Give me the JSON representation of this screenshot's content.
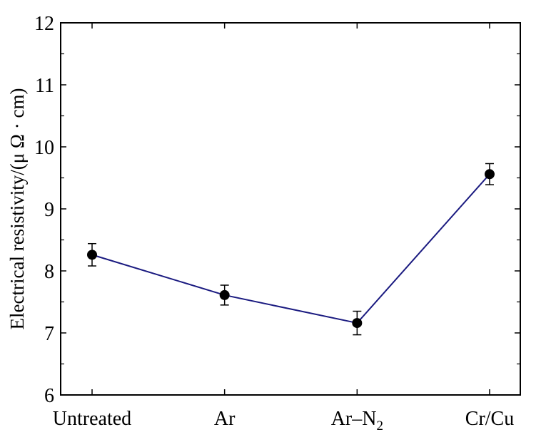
{
  "chart_data": {
    "type": "line",
    "title": "",
    "xlabel": "",
    "ylabel": "Electrical resistivity/(μ Ω · cm)",
    "categories": [
      {
        "main": "Untreated",
        "sub": ""
      },
      {
        "main": "Ar",
        "sub": ""
      },
      {
        "main": "Ar–N",
        "sub": "2"
      },
      {
        "main": "Cr/Cu",
        "sub": ""
      }
    ],
    "values": [
      8.26,
      7.61,
      7.16,
      9.56
    ],
    "error": [
      0.18,
      0.16,
      0.19,
      0.17
    ],
    "ylim": [
      6,
      12
    ],
    "yticks": [
      "6",
      "7",
      "8",
      "9",
      "10",
      "11",
      "12"
    ],
    "grid": false,
    "line_color": "#1a1a80",
    "marker_color": "#000000"
  }
}
